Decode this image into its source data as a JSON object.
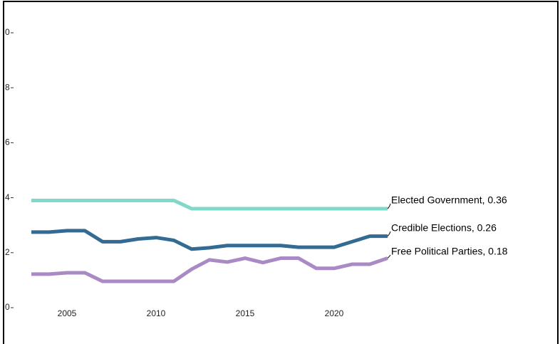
{
  "chart_data": {
    "type": "line",
    "x": [
      2003,
      2004,
      2005,
      2006,
      2007,
      2008,
      2009,
      2010,
      2011,
      2012,
      2013,
      2014,
      2015,
      2016,
      2017,
      2018,
      2019,
      2020,
      2021,
      2022,
      2023
    ],
    "series": [
      {
        "name": "Elected Government, 0.36",
        "color": "#7fd8c8",
        "values": [
          0.39,
          0.39,
          0.39,
          0.39,
          0.39,
          0.39,
          0.39,
          0.39,
          0.39,
          0.36,
          0.36,
          0.36,
          0.36,
          0.36,
          0.36,
          0.36,
          0.36,
          0.36,
          0.36,
          0.36,
          0.36
        ]
      },
      {
        "name": "Credible Elections, 0.26",
        "color": "#336b93",
        "values": [
          0.275,
          0.275,
          0.28,
          0.28,
          0.24,
          0.24,
          0.25,
          0.255,
          0.245,
          0.213,
          0.218,
          0.226,
          0.226,
          0.226,
          0.226,
          0.22,
          0.22,
          0.22,
          0.24,
          0.26,
          0.26
        ]
      },
      {
        "name": "Free Political Parties, 0.18",
        "color": "#a98ac4",
        "values": [
          0.122,
          0.122,
          0.127,
          0.127,
          0.096,
          0.096,
          0.096,
          0.096,
          0.096,
          0.14,
          0.174,
          0.166,
          0.18,
          0.164,
          0.18,
          0.18,
          0.143,
          0.143,
          0.158,
          0.158,
          0.18
        ]
      }
    ],
    "xlim": [
      2003,
      2023
    ],
    "xticks": [
      2005,
      2010,
      2015,
      2020
    ],
    "ylim": [
      0,
      1
    ],
    "yticks": [
      0,
      {
        "value": 0.2,
        "label": "2"
      },
      {
        "value": 0.4,
        "label": "4"
      },
      {
        "value": 0.6,
        "label": "6"
      },
      {
        "value": 0.8,
        "label": "8"
      },
      {
        "value": 1,
        "label": "0"
      }
    ]
  }
}
